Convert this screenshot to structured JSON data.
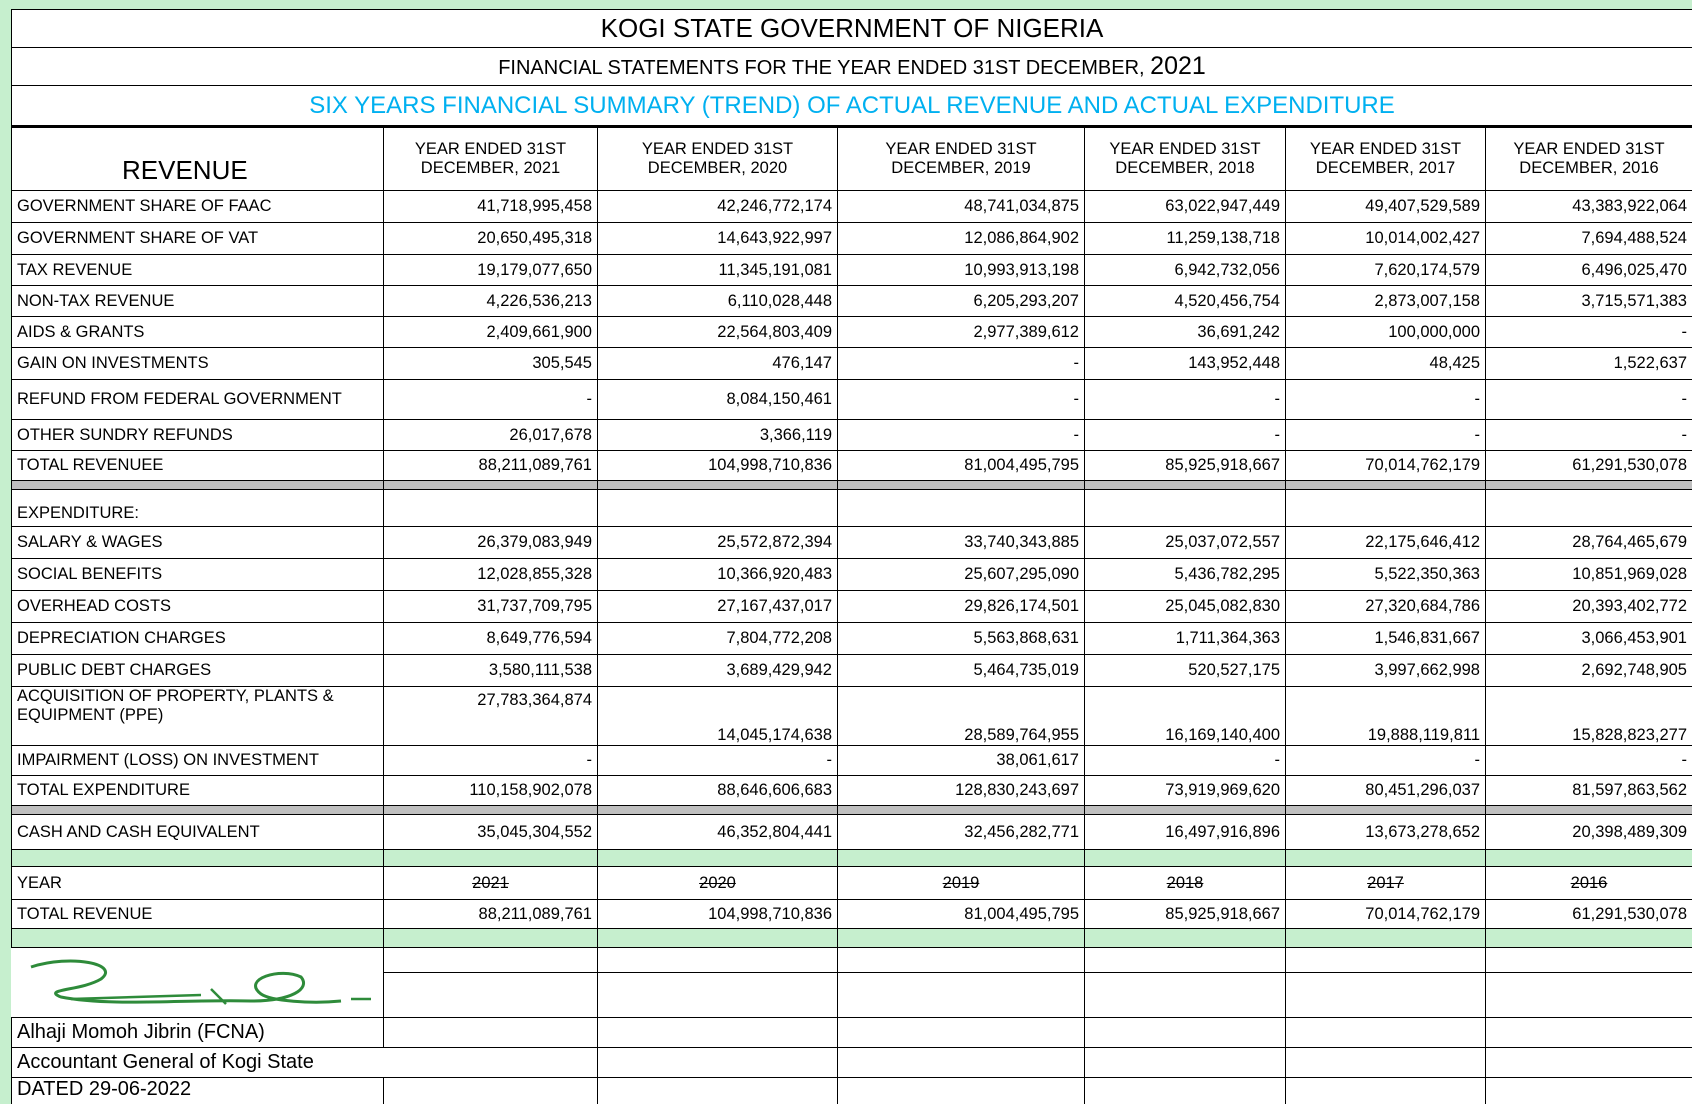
{
  "header": {
    "title": "KOGI STATE GOVERNMENT OF NIGERIA",
    "subtitle": "FINANCIAL STATEMENTS FOR THE YEAR ENDED 31ST DECEMBER,",
    "subtitle_year": "2021",
    "summary_title": "SIX YEARS FINANCIAL SUMMARY (TREND) OF ACTUAL REVENUE AND ACTUAL  EXPENDITURE"
  },
  "table": {
    "first_header": "REVENUE",
    "columns": [
      [
        "YEAR ENDED 31ST",
        "DECEMBER, 2021"
      ],
      [
        "YEAR ENDED 31ST",
        "DECEMBER, 2020"
      ],
      [
        "YEAR ENDED 31ST",
        "DECEMBER, 2019"
      ],
      [
        "YEAR ENDED 31ST",
        "DECEMBER, 2018"
      ],
      [
        "YEAR ENDED 31ST",
        "DECEMBER, 2017"
      ],
      [
        "YEAR ENDED 31ST",
        "DECEMBER, 2016"
      ]
    ],
    "revenue_rows": [
      {
        "label": "GOVERNMENT SHARE OF FAAC",
        "values": [
          "41,718,995,458",
          "42,246,772,174",
          "48,741,034,875",
          "63,022,947,449",
          "49,407,529,589",
          "43,383,922,064"
        ]
      },
      {
        "label": "GOVERNMENT SHARE OF VAT",
        "values": [
          "20,650,495,318",
          "14,643,922,997",
          "12,086,864,902",
          "11,259,138,718",
          "10,014,002,427",
          "7,694,488,524"
        ]
      },
      {
        "label": "TAX REVENUE",
        "values": [
          "19,179,077,650",
          "11,345,191,081",
          "10,993,913,198",
          "6,942,732,056",
          "7,620,174,579",
          "6,496,025,470"
        ]
      },
      {
        "label": "NON-TAX REVENUE",
        "values": [
          "4,226,536,213",
          "6,110,028,448",
          "6,205,293,207",
          "4,520,456,754",
          "2,873,007,158",
          "3,715,571,383"
        ]
      },
      {
        "label": "AIDS & GRANTS",
        "values": [
          "2,409,661,900",
          "22,564,803,409",
          "2,977,389,612",
          "36,691,242",
          "100,000,000",
          "-"
        ]
      },
      {
        "label": "GAIN ON INVESTMENTS",
        "values": [
          "305,545",
          "476,147",
          "-",
          "143,952,448",
          "48,425",
          "1,522,637"
        ]
      },
      {
        "label": "REFUND FROM FEDERAL GOVERNMENT",
        "values": [
          "-",
          "8,084,150,461",
          "-",
          "-",
          "-",
          "-"
        ]
      },
      {
        "label": "OTHER SUNDRY REFUNDS",
        "values": [
          "26,017,678",
          "3,366,119",
          "-",
          "-",
          "-",
          "-"
        ]
      },
      {
        "label": "TOTAL REVENUEE",
        "values": [
          "88,211,089,761",
          "104,998,710,836",
          "81,004,495,795",
          "85,925,918,667",
          "70,014,762,179",
          "61,291,530,078"
        ]
      }
    ],
    "expenditure_heading": "EXPENDITURE:",
    "expenditure_rows": [
      {
        "label": "SALARY & WAGES",
        "values": [
          "26,379,083,949",
          "25,572,872,394",
          "33,740,343,885",
          "25,037,072,557",
          "22,175,646,412",
          "28,764,465,679"
        ]
      },
      {
        "label": "SOCIAL BENEFITS",
        "values": [
          "12,028,855,328",
          "10,366,920,483",
          "25,607,295,090",
          "5,436,782,295",
          "5,522,350,363",
          "10,851,969,028"
        ]
      },
      {
        "label": "OVERHEAD COSTS",
        "values": [
          "31,737,709,795",
          "27,167,437,017",
          "29,826,174,501",
          "25,045,082,830",
          "27,320,684,786",
          "20,393,402,772"
        ]
      },
      {
        "label": "DEPRECIATION CHARGES",
        "values": [
          "8,649,776,594",
          "7,804,772,208",
          "5,563,868,631",
          "1,711,364,363",
          "1,546,831,667",
          "3,066,453,901"
        ]
      },
      {
        "label": "PUBLIC DEBT CHARGES",
        "values": [
          "3,580,111,538",
          "3,689,429,942",
          "5,464,735,019",
          "520,527,175",
          "3,997,662,998",
          "2,692,748,905"
        ]
      },
      {
        "label": "ACQUISITION OF PROPERTY, PLANTS & EQUIPMENT (PPE)",
        "values": [
          "27,783,364,874",
          "14,045,174,638",
          "28,589,764,955",
          "16,169,140,400",
          "19,888,119,811",
          "15,828,823,277"
        ]
      },
      {
        "label": "IMPAIRMENT (LOSS) ON INVESTMENT",
        "values": [
          "-",
          "-",
          "38,061,617",
          "-",
          "-",
          "-"
        ]
      },
      {
        "label": "TOTAL EXPENDITURE",
        "values": [
          "110,158,902,078",
          "88,646,606,683",
          "128,830,243,697",
          "73,919,969,620",
          "80,451,296,037",
          "81,597,863,562"
        ]
      }
    ],
    "cash_row": {
      "label": "CASH AND CASH EQUIVALENT",
      "values": [
        "35,045,304,552",
        "46,352,804,441",
        "32,456,282,771",
        "16,497,916,896",
        "13,673,278,652",
        "20,398,489,309"
      ]
    },
    "year_row": {
      "label": "YEAR",
      "values": [
        "2021",
        "2020",
        "2019",
        "2018",
        "2017",
        "2016"
      ]
    },
    "total_revenue_row": {
      "label": "TOTAL REVENUE",
      "values": [
        "88,211,089,761",
        "104,998,710,836",
        "81,004,495,795",
        "85,925,918,667",
        "70,014,762,179",
        "61,291,530,078"
      ]
    }
  },
  "footer": {
    "name": "Alhaji Momoh Jibrin (FCNA)",
    "position": "Accountant General of Kogi State",
    "date": "DATED  29-06-2022"
  }
}
